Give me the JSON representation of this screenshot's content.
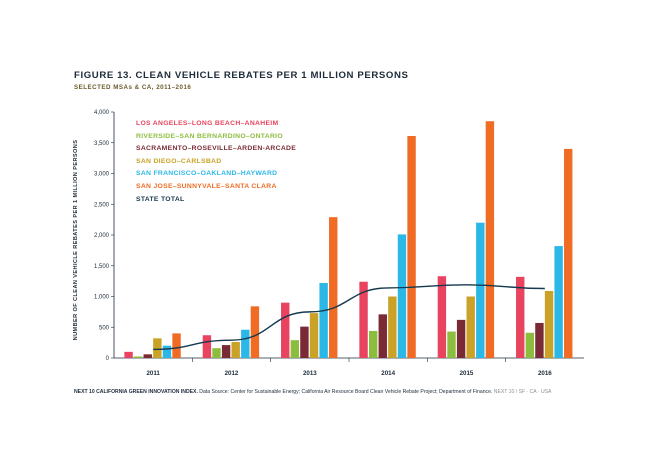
{
  "chart_data": {
    "type": "bar",
    "title": "FIGURE 13. CLEAN VEHICLE REBATES PER 1 MILLION PERSONS",
    "subtitle": "SELECTED MSAs & CA, 2011–2016",
    "ylabel": "NUMBER OF CLEAN VEHICLE REBATES PER 1 MILLION PERSONS",
    "xlabel": "",
    "ylim": [
      0,
      4000
    ],
    "yticks": [
      "0",
      "500",
      "1,000",
      "1,500",
      "2,000",
      "2,500",
      "3,000",
      "3,500",
      "4,000"
    ],
    "grid": false,
    "legend_position": "top-left",
    "categories": [
      "2011",
      "2012",
      "2013",
      "2014",
      "2015",
      "2016"
    ],
    "series": [
      {
        "name": "LOS ANGELES–LONG BEACH–ANAHEIM",
        "color": "#e8445f",
        "values": [
          100,
          370,
          900,
          1240,
          1330,
          1320
        ]
      },
      {
        "name": "RIVERSIDE–SAN BERNARDINO–ONTARIO",
        "color": "#8dbd3f",
        "values": [
          25,
          160,
          290,
          440,
          430,
          410
        ]
      },
      {
        "name": "SACRAMENTO–ROSEVILLE–ARDEN-ARCADE",
        "color": "#7a2a34",
        "values": [
          60,
          210,
          510,
          710,
          620,
          570
        ]
      },
      {
        "name": "SAN DIEGO–CARLSBAD",
        "color": "#c9a227",
        "values": [
          320,
          260,
          730,
          1000,
          1000,
          1090
        ]
      },
      {
        "name": "SAN FRANCISCO–OAKLAND–HAYWARD",
        "color": "#2bb8e6",
        "values": [
          200,
          460,
          1220,
          2010,
          2200,
          1820
        ]
      },
      {
        "name": "SAN JOSE–SUNNYVALE–SANTA CLARA",
        "color": "#f06b23",
        "values": [
          400,
          840,
          2290,
          3610,
          3850,
          3400
        ]
      }
    ],
    "line_series": {
      "name": "STATE TOTAL",
      "color": "#15394f",
      "values": [
        140,
        290,
        750,
        1140,
        1190,
        1130
      ]
    }
  },
  "footnote": {
    "bold": "NEXT 10 CALIFORNIA GREEN INNOVATION INDEX.",
    "source": "Data Source: Center for Sustainable Energy; California Air Resource Board Clean Vehicle Rebate Project; Department of Finance.",
    "publisher": "NEXT 10 / SF · CA · USA"
  }
}
